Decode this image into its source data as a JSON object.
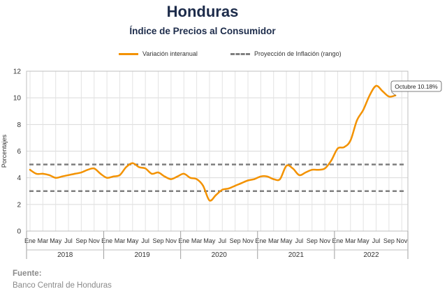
{
  "title": "Honduras",
  "subtitle": "Índice de Precios al Consumidor",
  "footer": {
    "label": "Fuente:",
    "source": "Banco Central de Honduras"
  },
  "colors": {
    "series": "#f39200",
    "projection": "#7f7f7f",
    "title": "#1c2b4a"
  },
  "chart_data": {
    "type": "line",
    "title": "Índice de Precios al Consumidor",
    "ylabel": "Porcentajes",
    "ylim": [
      0,
      12
    ],
    "yticks": [
      0,
      2,
      4,
      6,
      8,
      10,
      12
    ],
    "grid": true,
    "legend_position": "top",
    "month_tick_labels": [
      "Ene",
      "Mar",
      "May",
      "Jul",
      "Sep",
      "Nov"
    ],
    "years": [
      "2018",
      "2019",
      "2020",
      "2021",
      "2022"
    ],
    "series": [
      {
        "name": "Variación interanual",
        "start": "2018-01",
        "end": "2022-10",
        "values": [
          4.6,
          4.3,
          4.3,
          4.2,
          4.0,
          4.1,
          4.2,
          4.3,
          4.4,
          4.6,
          4.7,
          4.3,
          4.0,
          4.1,
          4.2,
          4.8,
          5.1,
          4.8,
          4.7,
          4.3,
          4.4,
          4.1,
          3.9,
          4.1,
          4.3,
          4.0,
          3.9,
          3.4,
          2.3,
          2.7,
          3.1,
          3.2,
          3.4,
          3.6,
          3.8,
          3.9,
          4.1,
          4.1,
          3.9,
          3.9,
          4.9,
          4.7,
          4.2,
          4.4,
          4.6,
          4.6,
          4.7,
          5.3,
          6.2,
          6.3,
          6.8,
          8.3,
          9.1,
          10.2,
          10.9,
          10.5,
          10.1,
          10.18
        ]
      },
      {
        "name": "Proyección de Inflación (rango)",
        "upper": 5.0,
        "lower": 3.0
      }
    ],
    "annotations": [
      {
        "x": "2022-10",
        "y": 10.18,
        "text": "Octubre 10.18%"
      }
    ]
  }
}
